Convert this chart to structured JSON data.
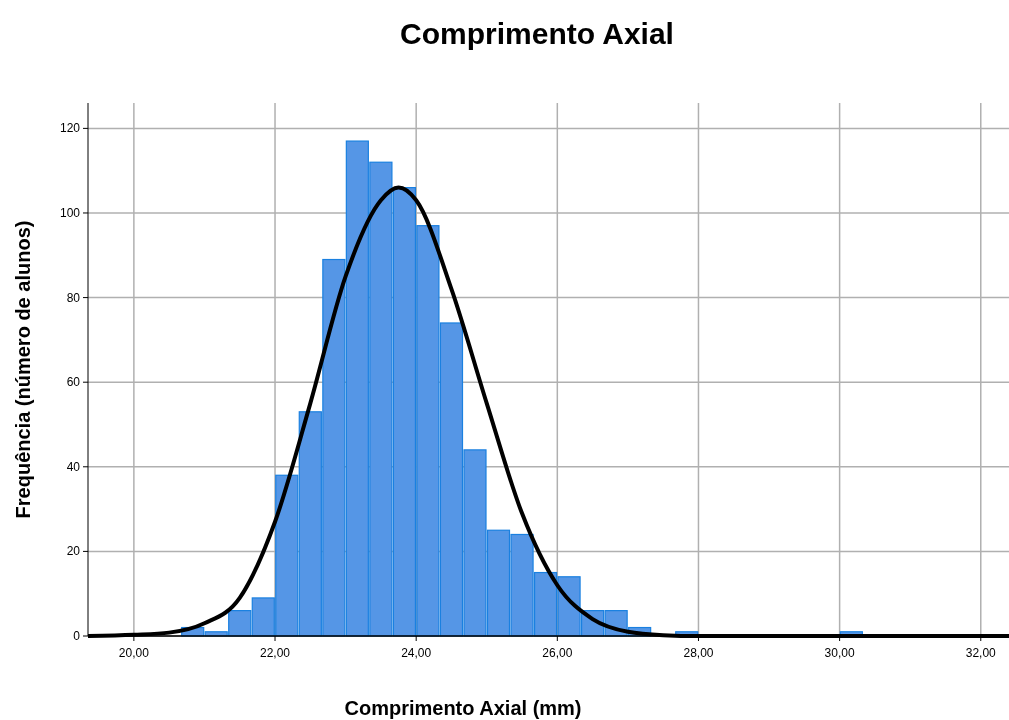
{
  "chart_data": {
    "type": "histogram",
    "title": "Comprimento Axial",
    "xlabel": "Comprimento Axial (mm)",
    "ylabel": "Frequência (número de alunos)",
    "bins": [
      20.667,
      21,
      21.333,
      21.667,
      22,
      22.333,
      22.667,
      23,
      23.333,
      23.667,
      24,
      24.333,
      24.667,
      25,
      25.333,
      25.667,
      26,
      26.333,
      26.667,
      27,
      27.333,
      27.667,
      28,
      28.333,
      28.667,
      29,
      29.333,
      29.667,
      30,
      30.333
    ],
    "values": [
      2,
      1,
      6,
      9,
      38,
      53,
      89,
      117,
      112,
      106,
      97,
      74,
      44,
      25,
      24,
      15,
      14,
      6,
      6,
      2,
      0,
      1,
      0,
      0,
      0,
      0,
      0,
      0,
      1
    ],
    "color": "#5596e6",
    "series": [
      {
        "type": "line",
        "color": "#000000",
        "x": [
          19.35,
          20,
          20.5,
          21,
          21.5,
          22,
          22.5,
          23,
          23.5,
          23.75,
          24,
          24.5,
          25,
          25.5,
          26,
          26.5,
          27,
          27.5,
          28,
          32.4
        ],
        "values": [
          0,
          0.3,
          0.8,
          3,
          9,
          27,
          55,
          85,
          103,
          106,
          103,
          82,
          55,
          29,
          12,
          4,
          1,
          0.2,
          0,
          0
        ]
      }
    ],
    "xlim": [
      19.35,
      32.4
    ],
    "ylim": [
      0,
      126
    ],
    "xticks": [
      {
        "value": 20,
        "label": "20,00"
      },
      {
        "value": 22,
        "label": "22,00"
      },
      {
        "value": 24,
        "label": "24,00"
      },
      {
        "value": 26,
        "label": "26,00"
      },
      {
        "value": 28,
        "label": "28,00"
      },
      {
        "value": 30,
        "label": "30,00"
      },
      {
        "value": 32,
        "label": "32,00"
      }
    ],
    "yticks": [
      0,
      20,
      40,
      60,
      80,
      100,
      120
    ],
    "grid": true,
    "line_style": "solid",
    "marker": "none"
  }
}
